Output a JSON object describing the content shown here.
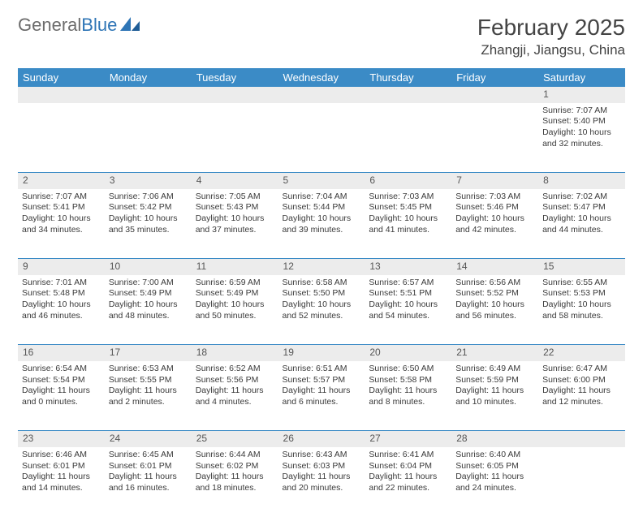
{
  "brand": {
    "part1": "General",
    "part2": "Blue"
  },
  "title": "February 2025",
  "location": "Zhangji, Jiangsu, China",
  "colors": {
    "header_bg": "#3b8bc6",
    "header_text": "#ffffff",
    "daynum_bg": "#ececec",
    "rule": "#3b8bc6",
    "text": "#3a3a3a",
    "logo_gray": "#6c6c6c",
    "logo_blue": "#2e75b6"
  },
  "weekdays": [
    "Sunday",
    "Monday",
    "Tuesday",
    "Wednesday",
    "Thursday",
    "Friday",
    "Saturday"
  ],
  "weeks": [
    {
      "nums": [
        "",
        "",
        "",
        "",
        "",
        "",
        "1"
      ],
      "cells": [
        {},
        {},
        {},
        {},
        {},
        {},
        {
          "sunrise": "Sunrise: 7:07 AM",
          "sunset": "Sunset: 5:40 PM",
          "day1": "Daylight: 10 hours",
          "day2": "and 32 minutes."
        }
      ]
    },
    {
      "nums": [
        "2",
        "3",
        "4",
        "5",
        "6",
        "7",
        "8"
      ],
      "cells": [
        {
          "sunrise": "Sunrise: 7:07 AM",
          "sunset": "Sunset: 5:41 PM",
          "day1": "Daylight: 10 hours",
          "day2": "and 34 minutes."
        },
        {
          "sunrise": "Sunrise: 7:06 AM",
          "sunset": "Sunset: 5:42 PM",
          "day1": "Daylight: 10 hours",
          "day2": "and 35 minutes."
        },
        {
          "sunrise": "Sunrise: 7:05 AM",
          "sunset": "Sunset: 5:43 PM",
          "day1": "Daylight: 10 hours",
          "day2": "and 37 minutes."
        },
        {
          "sunrise": "Sunrise: 7:04 AM",
          "sunset": "Sunset: 5:44 PM",
          "day1": "Daylight: 10 hours",
          "day2": "and 39 minutes."
        },
        {
          "sunrise": "Sunrise: 7:03 AM",
          "sunset": "Sunset: 5:45 PM",
          "day1": "Daylight: 10 hours",
          "day2": "and 41 minutes."
        },
        {
          "sunrise": "Sunrise: 7:03 AM",
          "sunset": "Sunset: 5:46 PM",
          "day1": "Daylight: 10 hours",
          "day2": "and 42 minutes."
        },
        {
          "sunrise": "Sunrise: 7:02 AM",
          "sunset": "Sunset: 5:47 PM",
          "day1": "Daylight: 10 hours",
          "day2": "and 44 minutes."
        }
      ]
    },
    {
      "nums": [
        "9",
        "10",
        "11",
        "12",
        "13",
        "14",
        "15"
      ],
      "cells": [
        {
          "sunrise": "Sunrise: 7:01 AM",
          "sunset": "Sunset: 5:48 PM",
          "day1": "Daylight: 10 hours",
          "day2": "and 46 minutes."
        },
        {
          "sunrise": "Sunrise: 7:00 AM",
          "sunset": "Sunset: 5:49 PM",
          "day1": "Daylight: 10 hours",
          "day2": "and 48 minutes."
        },
        {
          "sunrise": "Sunrise: 6:59 AM",
          "sunset": "Sunset: 5:49 PM",
          "day1": "Daylight: 10 hours",
          "day2": "and 50 minutes."
        },
        {
          "sunrise": "Sunrise: 6:58 AM",
          "sunset": "Sunset: 5:50 PM",
          "day1": "Daylight: 10 hours",
          "day2": "and 52 minutes."
        },
        {
          "sunrise": "Sunrise: 6:57 AM",
          "sunset": "Sunset: 5:51 PM",
          "day1": "Daylight: 10 hours",
          "day2": "and 54 minutes."
        },
        {
          "sunrise": "Sunrise: 6:56 AM",
          "sunset": "Sunset: 5:52 PM",
          "day1": "Daylight: 10 hours",
          "day2": "and 56 minutes."
        },
        {
          "sunrise": "Sunrise: 6:55 AM",
          "sunset": "Sunset: 5:53 PM",
          "day1": "Daylight: 10 hours",
          "day2": "and 58 minutes."
        }
      ]
    },
    {
      "nums": [
        "16",
        "17",
        "18",
        "19",
        "20",
        "21",
        "22"
      ],
      "cells": [
        {
          "sunrise": "Sunrise: 6:54 AM",
          "sunset": "Sunset: 5:54 PM",
          "day1": "Daylight: 11 hours",
          "day2": "and 0 minutes."
        },
        {
          "sunrise": "Sunrise: 6:53 AM",
          "sunset": "Sunset: 5:55 PM",
          "day1": "Daylight: 11 hours",
          "day2": "and 2 minutes."
        },
        {
          "sunrise": "Sunrise: 6:52 AM",
          "sunset": "Sunset: 5:56 PM",
          "day1": "Daylight: 11 hours",
          "day2": "and 4 minutes."
        },
        {
          "sunrise": "Sunrise: 6:51 AM",
          "sunset": "Sunset: 5:57 PM",
          "day1": "Daylight: 11 hours",
          "day2": "and 6 minutes."
        },
        {
          "sunrise": "Sunrise: 6:50 AM",
          "sunset": "Sunset: 5:58 PM",
          "day1": "Daylight: 11 hours",
          "day2": "and 8 minutes."
        },
        {
          "sunrise": "Sunrise: 6:49 AM",
          "sunset": "Sunset: 5:59 PM",
          "day1": "Daylight: 11 hours",
          "day2": "and 10 minutes."
        },
        {
          "sunrise": "Sunrise: 6:47 AM",
          "sunset": "Sunset: 6:00 PM",
          "day1": "Daylight: 11 hours",
          "day2": "and 12 minutes."
        }
      ]
    },
    {
      "nums": [
        "23",
        "24",
        "25",
        "26",
        "27",
        "28",
        ""
      ],
      "cells": [
        {
          "sunrise": "Sunrise: 6:46 AM",
          "sunset": "Sunset: 6:01 PM",
          "day1": "Daylight: 11 hours",
          "day2": "and 14 minutes."
        },
        {
          "sunrise": "Sunrise: 6:45 AM",
          "sunset": "Sunset: 6:01 PM",
          "day1": "Daylight: 11 hours",
          "day2": "and 16 minutes."
        },
        {
          "sunrise": "Sunrise: 6:44 AM",
          "sunset": "Sunset: 6:02 PM",
          "day1": "Daylight: 11 hours",
          "day2": "and 18 minutes."
        },
        {
          "sunrise": "Sunrise: 6:43 AM",
          "sunset": "Sunset: 6:03 PM",
          "day1": "Daylight: 11 hours",
          "day2": "and 20 minutes."
        },
        {
          "sunrise": "Sunrise: 6:41 AM",
          "sunset": "Sunset: 6:04 PM",
          "day1": "Daylight: 11 hours",
          "day2": "and 22 minutes."
        },
        {
          "sunrise": "Sunrise: 6:40 AM",
          "sunset": "Sunset: 6:05 PM",
          "day1": "Daylight: 11 hours",
          "day2": "and 24 minutes."
        },
        {}
      ]
    }
  ]
}
